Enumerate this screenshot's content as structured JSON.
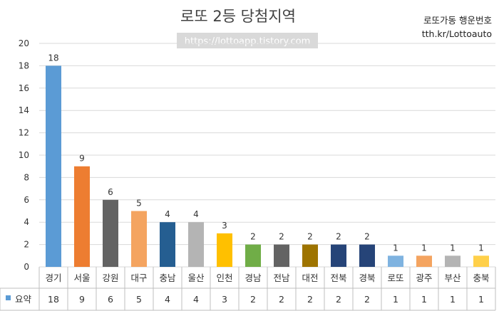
{
  "chart_data": {
    "type": "bar",
    "title": "로또 2등 당첨지역",
    "categories": [
      "경기",
      "서울",
      "강원",
      "대구",
      "충남",
      "울산",
      "인천",
      "경남",
      "전남",
      "대전",
      "전북",
      "경북",
      "로또",
      "광주",
      "부산",
      "충북"
    ],
    "series": [
      {
        "name": "요약",
        "values": [
          18,
          9,
          6,
          5,
          4,
          4,
          3,
          2,
          2,
          2,
          2,
          2,
          1,
          1,
          1,
          1
        ]
      }
    ],
    "colors": [
      "#5b9bd5",
      "#ed7d31",
      "#636363",
      "#f4a460",
      "#255e91",
      "#b4b4b4",
      "#ffc000",
      "#70ad47",
      "#636363",
      "#9e7400",
      "#264478",
      "#264478",
      "#7fb3e0",
      "#f4a460",
      "#b4b4b4",
      "#ffd04a"
    ],
    "yticks": [
      "0",
      "2",
      "4",
      "6",
      "8",
      "10",
      "12",
      "14",
      "16",
      "18",
      "20"
    ],
    "ylim": [
      0,
      20
    ],
    "grid": true,
    "legend_position": "data-table",
    "legend_color": "#5b9bd5"
  },
  "watermark": "https://lottoapp.tistory.com",
  "side_text": {
    "line1": "로또가동 행운번호",
    "line2": "tth.kr/Lottoauto"
  }
}
